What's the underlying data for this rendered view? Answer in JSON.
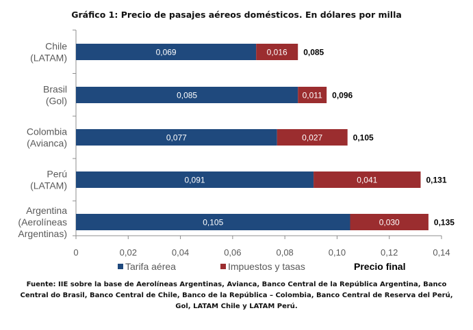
{
  "chart_data": {
    "type": "bar",
    "orientation": "horizontal",
    "stacked": true,
    "title": "Gráfico 1: Precio de pasajes aéreos domésticos. En dólares por milla",
    "categories": [
      [
        "Chile",
        "(LATAM)"
      ],
      [
        "Brasil",
        "(Gol)"
      ],
      [
        "Colombia",
        "(Avianca)"
      ],
      [
        "Perú",
        "(LATAM)"
      ],
      [
        "Argentina",
        "(Aerolíneas",
        "Argentinas)"
      ]
    ],
    "series": [
      {
        "name": "Tarifa aérea",
        "color": "#1F497D",
        "values": [
          0.069,
          0.085,
          0.077,
          0.091,
          0.105
        ],
        "labels": [
          "0,069",
          "0,085",
          "0,077",
          "0,091",
          "0,105"
        ]
      },
      {
        "name": "Impuestos y tasas",
        "color": "#9B2D2F",
        "values": [
          0.016,
          0.011,
          0.027,
          0.041,
          0.03
        ],
        "labels": [
          "0,016",
          "0,011",
          "0,027",
          "0,041",
          "0,030"
        ]
      }
    ],
    "totals": {
      "name": "Precio final",
      "values": [
        0.085,
        0.096,
        0.105,
        0.131,
        0.135
      ],
      "labels": [
        "0,085",
        "0,096",
        "0,105",
        "0,131",
        "0,135"
      ]
    },
    "xlim": [
      0,
      0.14
    ],
    "xticks": [
      0,
      0.02,
      0.04,
      0.06,
      0.08,
      0.1,
      0.12,
      0.14
    ],
    "xtick_labels": [
      "0",
      "0,02",
      "0,04",
      "0,06",
      "0,08",
      "0,10",
      "0,12",
      "0,14"
    ],
    "grid": false,
    "legend_position": "bottom",
    "source": "Fuente: IIE sobre la base de Aerolíneas Argentinas, Avianca, Banco Central de la República Argentina, Banco Central do Brasil, Banco Central de Chile, Banco de la República – Colombia, Banco Central de Reserva del Perú, Gol, LATAM Chile y LATAM Perú."
  }
}
